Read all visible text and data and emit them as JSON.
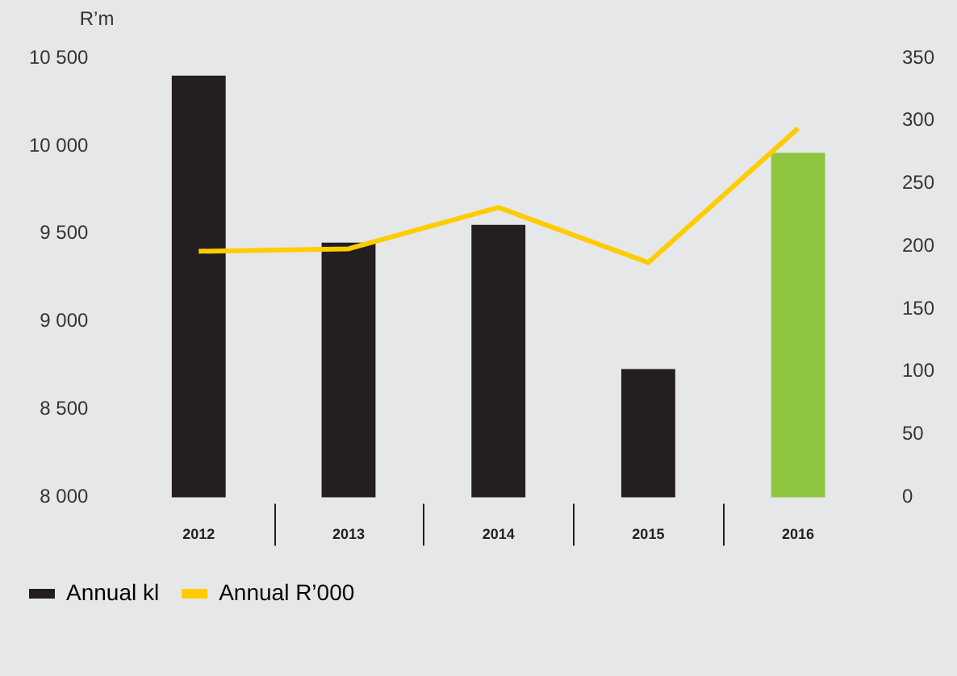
{
  "chart_data": {
    "type": "bar",
    "ylabel": "R’m",
    "categories": [
      "2012",
      "2013",
      "2014",
      "2015",
      "2016"
    ],
    "series": [
      {
        "name": "Annual kl",
        "color": "#231f20",
        "colors": [
          "#231f20",
          "#231f20",
          "#231f20",
          "#231f20",
          "#8dc63f"
        ],
        "values": [
          10400,
          9450,
          9550,
          8730,
          9960
        ]
      },
      {
        "name": "Annual R’000",
        "type": "line",
        "axis": "y2",
        "color": "#ffcc00",
        "values": [
          196,
          198,
          231,
          187,
          294
        ]
      }
    ],
    "ylim": [
      8000,
      10500
    ],
    "yticks": [
      {
        "value": 8000,
        "label": "8 000"
      },
      {
        "value": 8500,
        "label": "8 500"
      },
      {
        "value": 9000,
        "label": "9 000"
      },
      {
        "value": 9500,
        "label": "9 500"
      },
      {
        "value": 10000,
        "label": "10 000"
      },
      {
        "value": 10500,
        "label": "10 500"
      }
    ],
    "y2lim": [
      0,
      350
    ],
    "y2ticks": [
      0,
      50,
      100,
      150,
      200,
      250,
      300,
      350
    ],
    "legend": "bottom left",
    "marker": "none"
  }
}
